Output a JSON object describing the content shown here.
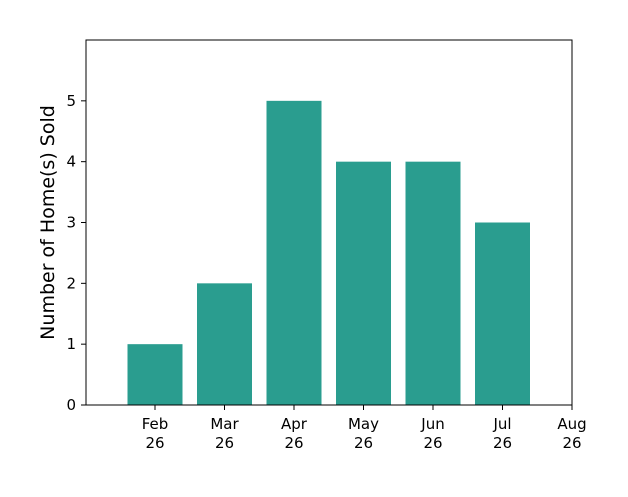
{
  "chart_data": {
    "type": "bar",
    "title": "",
    "xlabel": "",
    "ylabel": "Number of Home(s) Sold",
    "categories": [
      "Feb 26",
      "Mar 26",
      "Apr 26",
      "May 26",
      "Jun 26",
      "Jul 26"
    ],
    "values": [
      1,
      2,
      5,
      4,
      4,
      3
    ],
    "x_ticks": [
      [
        "Feb",
        "26"
      ],
      [
        "Mar",
        "26"
      ],
      [
        "Apr",
        "26"
      ],
      [
        "May",
        "26"
      ],
      [
        "Jun",
        "26"
      ],
      [
        "Jul",
        "26"
      ],
      [
        "Aug",
        "26"
      ]
    ],
    "y_ticks": [
      0,
      1,
      2,
      3,
      4,
      5
    ],
    "ylim": [
      0,
      6
    ],
    "grid": false,
    "legend": "none",
    "bar_color": "#2a9d8f"
  }
}
